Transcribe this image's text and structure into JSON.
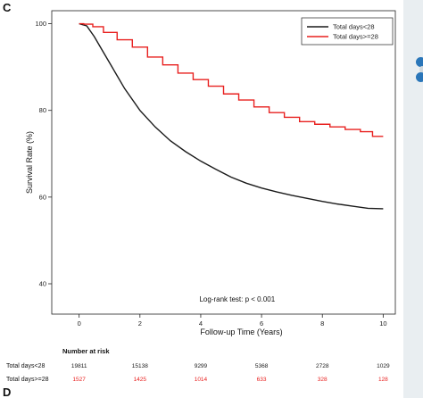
{
  "panel_letter": "C",
  "panel_letter_next": "D",
  "colors": {
    "series_lt28": "#1a1a1a",
    "series_ge28": "#e8201f",
    "accent_dot": "#2a76b9"
  },
  "chart_data": {
    "type": "line",
    "xlabel": "Follow-up Time (Years)",
    "ylabel": "Survival Rate (%)",
    "xlim": [
      -0.9,
      10.4
    ],
    "ylim": [
      33,
      103
    ],
    "xticks": [
      0,
      2,
      4,
      6,
      8,
      10
    ],
    "yticks": [
      40,
      60,
      80,
      100
    ],
    "grid": false,
    "legend_position": "top-right",
    "annotation": "Log-rank test: p < 0.001",
    "series": [
      {
        "name": "Total days<28",
        "color": "#1a1a1a",
        "step": false,
        "x": [
          0,
          0.25,
          0.5,
          0.75,
          1,
          1.25,
          1.5,
          2,
          2.5,
          3,
          3.5,
          4,
          4.5,
          5,
          5.5,
          6,
          6.5,
          7,
          7.5,
          8,
          8.5,
          9,
          9.5,
          10
        ],
        "y": [
          100,
          99.5,
          97,
          94,
          91,
          88,
          85,
          80,
          76.2,
          73,
          70.5,
          68.3,
          66.4,
          64.6,
          63.2,
          62.1,
          61.2,
          60.4,
          59.7,
          59,
          58.4,
          57.9,
          57.4,
          57.3
        ]
      },
      {
        "name": "Total days>=28",
        "color": "#e8201f",
        "step": true,
        "x": [
          0,
          0.3,
          0.6,
          1,
          1.5,
          2,
          2.5,
          3,
          3.5,
          4,
          4.5,
          5,
          5.5,
          6,
          6.5,
          7,
          7.5,
          8,
          8.5,
          9,
          9.5,
          9.8,
          10
        ],
        "y": [
          100,
          99.9,
          99.3,
          98,
          96.3,
          94.6,
          92.3,
          90.5,
          88.6,
          87.1,
          85.6,
          83.8,
          82.4,
          80.8,
          79.5,
          78.4,
          77.4,
          76.8,
          76.2,
          75.6,
          75.1,
          74,
          74
        ]
      }
    ]
  },
  "risk_table": {
    "title": "Number at risk",
    "time_points": [
      0,
      2,
      4,
      6,
      8,
      10
    ],
    "rows": [
      {
        "label": "Total days<28",
        "color": "#1a1a1a",
        "values": [
          "19811",
          "15138",
          "9299",
          "5368",
          "2728",
          "1029"
        ]
      },
      {
        "label": "Total days>=28",
        "color": "#e8201f",
        "values": [
          "1527",
          "1425",
          "1014",
          "633",
          "328",
          "128"
        ]
      }
    ]
  }
}
